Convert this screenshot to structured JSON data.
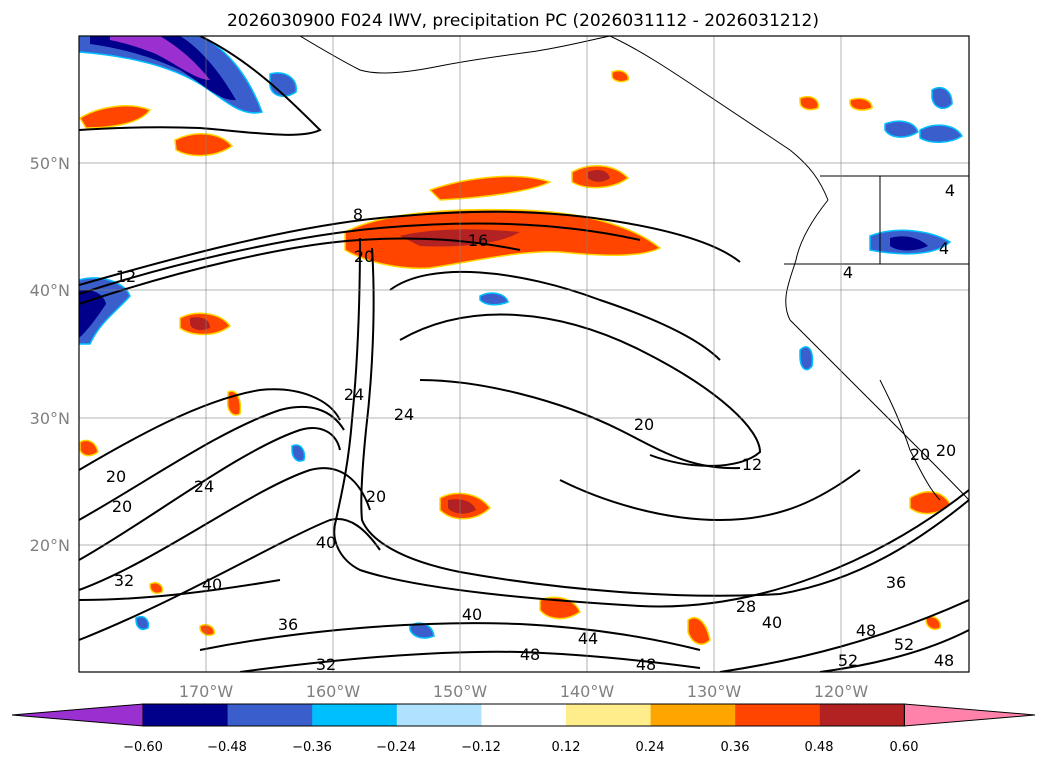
{
  "title": "2026030900 F024 IWV, precipitation PC (2026031112 - 2026031212)",
  "map": {
    "lat_labels": [
      "50°N",
      "40°N",
      "30°N",
      "20°N"
    ],
    "lon_labels": [
      "170°W",
      "160°W",
      "150°W",
      "140°W",
      "130°W",
      "120°W"
    ],
    "lat_values": [
      50,
      40,
      30,
      20
    ],
    "lon_values": [
      -170,
      -160,
      -150,
      -140,
      -130,
      -120
    ],
    "extent": {
      "lon_min": -180,
      "lon_max": -110,
      "lat_min": 10,
      "lat_max": 60
    },
    "gridlines": true,
    "contour_labels": [
      "8",
      "12",
      "16",
      "20",
      "4",
      "4",
      "4",
      "24",
      "24",
      "20",
      "20",
      "20",
      "20",
      "20",
      "24",
      "40",
      "20",
      "12",
      "28",
      "36",
      "40",
      "40",
      "32",
      "40",
      "36",
      "32",
      "48",
      "44",
      "48",
      "48",
      "52",
      "52",
      "48"
    ],
    "land_color": "#ffffff",
    "contour_color": "#000000"
  },
  "colorbar": {
    "tick_labels": [
      "−0.60",
      "−0.48",
      "−0.36",
      "−0.24",
      "−0.12",
      "0.12",
      "0.24",
      "0.36",
      "0.48",
      "0.60"
    ],
    "colors": [
      "#9b30d0",
      "#00008b",
      "#3a5fcd",
      "#00bfff",
      "#b0e2ff",
      "#ffffff",
      "#ffec8b",
      "#ffa500",
      "#ff4500",
      "#b22222",
      "#ff82ab"
    ],
    "extend": "both"
  }
}
